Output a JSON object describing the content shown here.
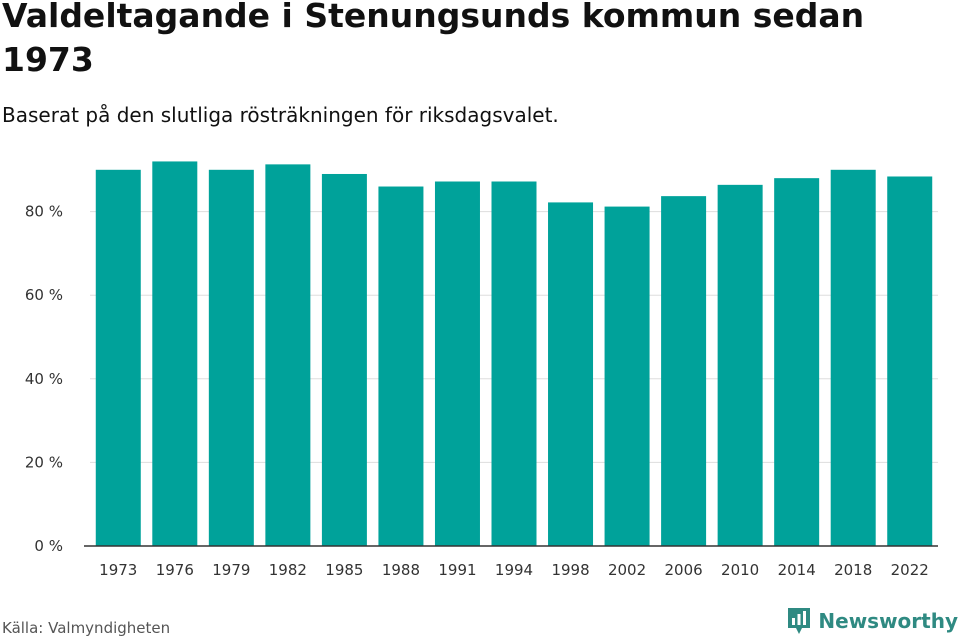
{
  "title": "Valdeltagande i Stenungsunds kommun sedan 1973",
  "subtitle": "Baserat på den slutliga rösträkningen för riksdagsvalet.",
  "source": "Källa: Valmyndigheten",
  "brand": "Newsworthy",
  "colors": {
    "bar": "#00a29a",
    "brand": "#2f8a82",
    "grid": "#dddddd"
  },
  "chart_data": {
    "type": "bar",
    "categories": [
      "1973",
      "1976",
      "1979",
      "1982",
      "1985",
      "1988",
      "1991",
      "1994",
      "1998",
      "2002",
      "2006",
      "2010",
      "2014",
      "2018",
      "2022"
    ],
    "values": [
      90.0,
      92.0,
      90.0,
      91.3,
      89.0,
      86.0,
      87.2,
      87.2,
      82.2,
      81.2,
      83.7,
      86.4,
      88.0,
      90.0,
      88.4
    ],
    "ylim": [
      0,
      100
    ],
    "yticks": [
      0,
      20,
      40,
      60,
      80
    ],
    "ytick_labels": [
      "0 %",
      "20 %",
      "40 %",
      "60 %",
      "80 %"
    ],
    "grid": true,
    "xlabel": "",
    "ylabel": ""
  }
}
